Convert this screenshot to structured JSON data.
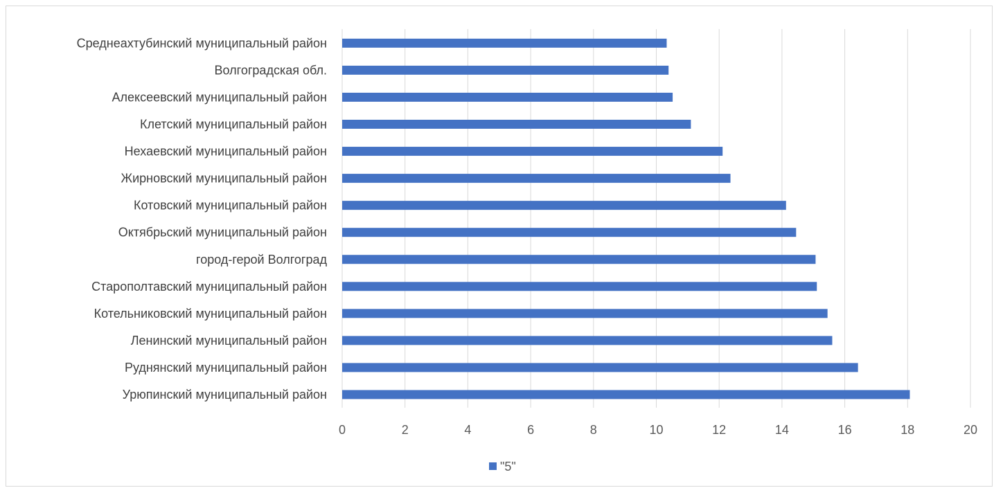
{
  "chart_data": {
    "type": "bar",
    "orientation": "horizontal",
    "categories": [
      "Урюпинский муниципальный район",
      "Руднянский муниципальный район",
      "Ленинский муниципальный район",
      "Котельниковский муниципальный район",
      "Старополтавский муниципальный район",
      "город-герой Волгоград",
      "Октябрьский муниципальный район",
      "Котовский муниципальный район",
      "Жирновский муниципальный район",
      "Нехаевский муниципальный район",
      "Клетский муниципальный район",
      "Алексеевский муниципальный район",
      "Волгоградская обл.",
      "Среднеахтубинский муниципальный район"
    ],
    "series": [
      {
        "name": "\"5\"",
        "values": [
          18.07,
          16.42,
          15.6,
          15.45,
          15.11,
          15.07,
          14.45,
          14.13,
          12.36,
          12.11,
          11.1,
          10.52,
          10.39,
          10.33
        ]
      }
    ],
    "xlim": [
      0,
      20
    ],
    "xticks": [
      "0",
      "2",
      "4",
      "6",
      "8",
      "10",
      "12",
      "14",
      "16",
      "18",
      "20"
    ],
    "grid": true,
    "legend_position": "bottom",
    "colors": {
      "bar": "#4472c4",
      "grid": "#d9d9d9",
      "label": "#404040",
      "tick": "#595959"
    }
  }
}
